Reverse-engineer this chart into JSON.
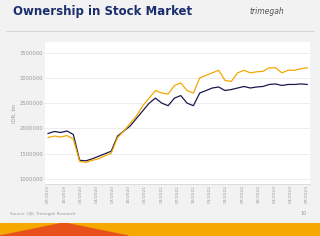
{
  "title": "Ownership in Stock Market",
  "ylabel": "IDR, bn",
  "background_color": "#f2f2f2",
  "plot_bg_color": "#ffffff",
  "foreign_color": "#1a1a4e",
  "local_color": "#f5a800",
  "title_color": "#1a2e6e",
  "title_fontsize": 8.5,
  "source_text": "Source: OJK, Trimegah Research",
  "x_labels": [
    "07/2019",
    "10/2019",
    "01/2020",
    "04/2020",
    "07/2020",
    "10/2020",
    "01/2021",
    "04/2021",
    "07/2021",
    "10/2021",
    "01/2022",
    "04/2022",
    "07/2022",
    "10/2022",
    "01/2023",
    "04/2023",
    "07/2023"
  ],
  "foreign_data": [
    1900000,
    1940000,
    1920000,
    1950000,
    1880000,
    1370000,
    1360000,
    1400000,
    1450000,
    1500000,
    1550000,
    1850000,
    1950000,
    2050000,
    2200000,
    2350000,
    2500000,
    2600000,
    2500000,
    2450000,
    2600000,
    2650000,
    2500000,
    2450000,
    2700000,
    2750000,
    2800000,
    2820000,
    2750000,
    2770000,
    2800000,
    2830000,
    2800000,
    2820000,
    2830000,
    2870000,
    2880000,
    2850000,
    2870000,
    2870000,
    2880000,
    2870000
  ],
  "local_data": [
    1820000,
    1850000,
    1830000,
    1860000,
    1790000,
    1350000,
    1330000,
    1370000,
    1400000,
    1460000,
    1510000,
    1820000,
    1950000,
    2100000,
    2250000,
    2450000,
    2600000,
    2750000,
    2700000,
    2680000,
    2850000,
    2900000,
    2750000,
    2700000,
    3000000,
    3050000,
    3100000,
    3150000,
    2950000,
    2930000,
    3100000,
    3150000,
    3100000,
    3120000,
    3130000,
    3200000,
    3200000,
    3100000,
    3150000,
    3150000,
    3180000,
    3200000
  ],
  "yticks": [
    1000000,
    1500000,
    2000000,
    2500000,
    3000000,
    3500000
  ],
  "ylim": [
    900000,
    3700000
  ],
  "page_number": "10"
}
